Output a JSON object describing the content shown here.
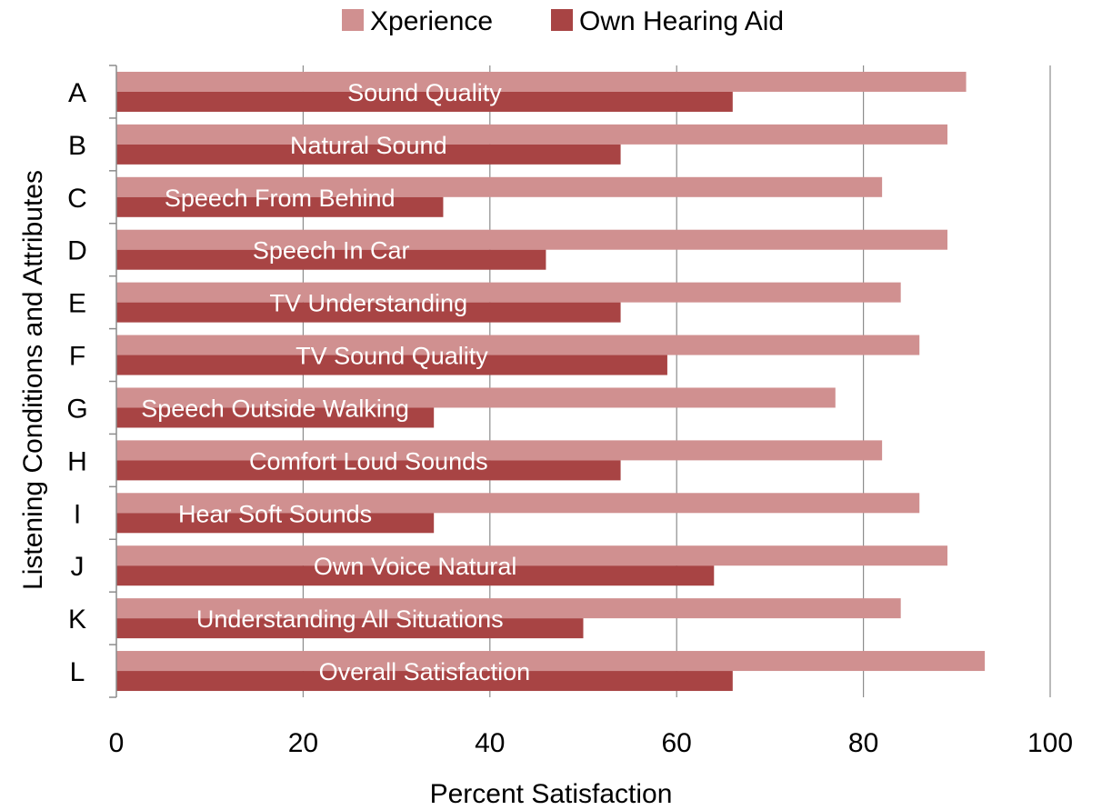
{
  "chart_data": {
    "type": "bar",
    "orientation": "horizontal",
    "xlabel": "Percent Satisfaction",
    "ylabel": "Listening Conditions and Attributes",
    "xlim": [
      0,
      100
    ],
    "xticks": [
      "0",
      "20",
      "40",
      "60",
      "80",
      "100"
    ],
    "grid": "vertical",
    "legend_position": "top",
    "categories": [
      "A",
      "B",
      "C",
      "D",
      "E",
      "F",
      "G",
      "H",
      "I",
      "J",
      "K",
      "L"
    ],
    "bar_labels": [
      "Sound Quality",
      "Natural Sound",
      "Speech From Behind",
      "Speech In Car",
      "TV Understanding",
      "TV Sound Quality",
      "Speech Outside Walking",
      "Comfort Loud Sounds",
      "Hear Soft Sounds",
      "Own Voice Natural",
      "Understanding All Situations",
      "Overall Satisfaction"
    ],
    "series": [
      {
        "name": "Xperience",
        "color": "#d09090",
        "values": [
          91,
          89,
          82,
          89,
          84,
          86,
          77,
          82,
          86,
          89,
          84,
          93
        ]
      },
      {
        "name": "Own Hearing Aid",
        "color": "#a84444",
        "values": [
          66,
          54,
          35,
          46,
          54,
          59,
          34,
          54,
          34,
          64,
          50,
          66
        ]
      }
    ]
  }
}
